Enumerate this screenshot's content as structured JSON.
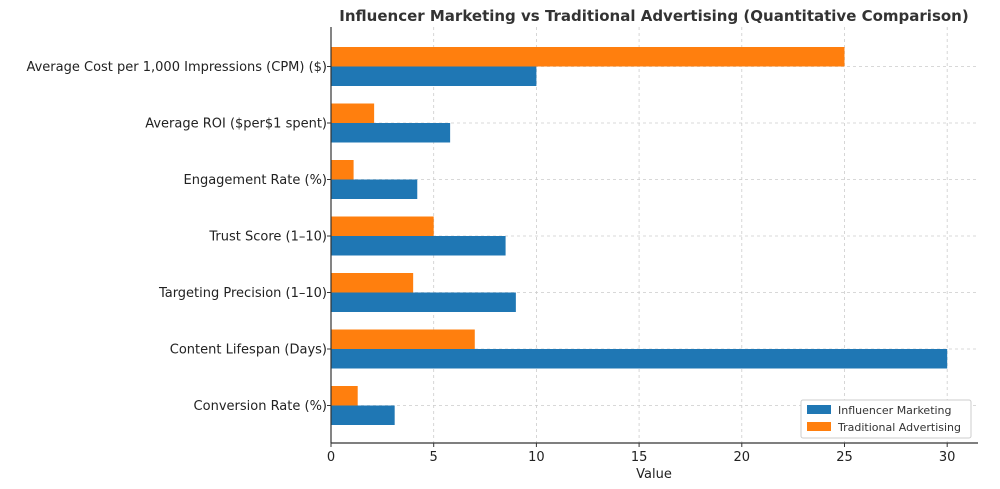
{
  "chart_data": {
    "type": "bar",
    "orientation": "horizontal",
    "title": "Influencer Marketing vs Traditional Advertising (Quantitative Comparison)",
    "xlabel": "Value",
    "ylabel": "",
    "xlim": [
      0,
      31.5
    ],
    "xticks": [
      0,
      5,
      10,
      15,
      20,
      25,
      30
    ],
    "grid": true,
    "legend_position": "lower-right",
    "categories": [
      "Average Cost per 1,000 Impressions (CPM) ($)",
      "Average ROI ($per$1 spent)",
      "Engagement Rate (%)",
      "Trust Score (1–10)",
      "Targeting Precision (1–10)",
      "Content Lifespan (Days)",
      "Conversion Rate (%)"
    ],
    "series": [
      {
        "name": "Influencer Marketing",
        "color": "#1f77b4",
        "values": [
          10,
          5.8,
          4.2,
          8.5,
          9,
          30,
          3.1
        ]
      },
      {
        "name": "Traditional Advertising",
        "color": "#ff7f0e",
        "values": [
          25,
          2.1,
          1.1,
          5,
          4,
          7,
          1.3
        ]
      }
    ]
  }
}
